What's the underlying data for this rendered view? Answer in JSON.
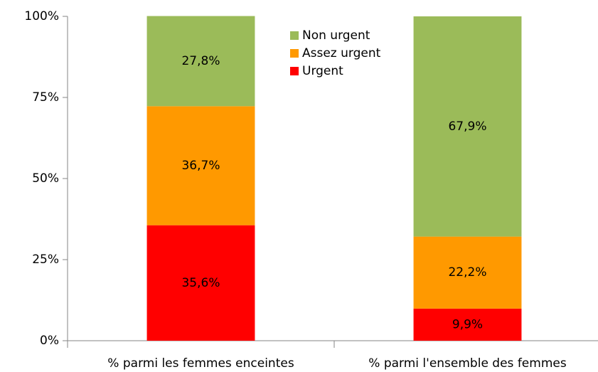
{
  "chart_data": {
    "type": "stacked_bar",
    "categories": [
      "% parmi les femmes enceintes",
      "% parmi l'ensemble des femmes"
    ],
    "series": [
      {
        "name": "Urgent",
        "color": "#ff0000",
        "values": [
          35.6,
          9.9
        ],
        "value_labels": [
          "35,6%",
          "9,9%"
        ]
      },
      {
        "name": "Assez urgent",
        "color": "#ff9900",
        "values": [
          36.7,
          22.2
        ],
        "value_labels": [
          "36,7%",
          "22,2%"
        ]
      },
      {
        "name": "Non urgent",
        "color": "#9bbb59",
        "values": [
          27.8,
          67.9
        ],
        "value_labels": [
          "27,8%",
          "67,9%"
        ]
      }
    ],
    "ylim": [
      0,
      100
    ],
    "yticks": [
      {
        "value": 0,
        "label": "0%"
      },
      {
        "value": 25,
        "label": "25%"
      },
      {
        "value": 50,
        "label": "50%"
      },
      {
        "value": 75,
        "label": "75%"
      },
      {
        "value": 100,
        "label": "100%"
      }
    ],
    "legend": "top"
  }
}
